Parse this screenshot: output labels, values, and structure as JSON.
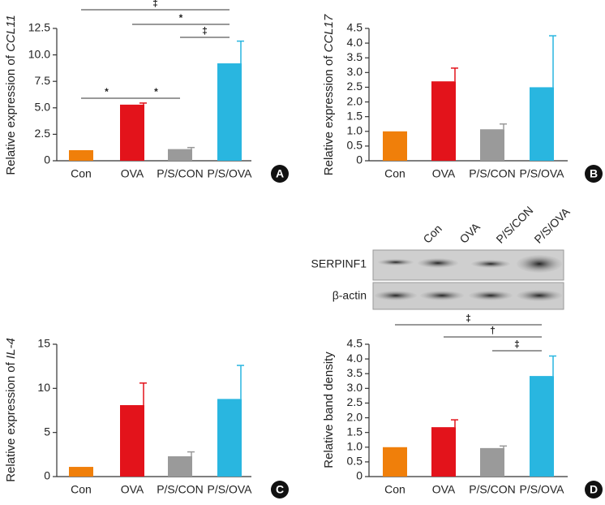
{
  "chart_data": [
    {
      "type": "bar",
      "label": "A",
      "ylabel": {
        "text": "Relative expression of ",
        "gene": "CCL11"
      },
      "categories": [
        "Con",
        "OVA",
        "P/S/CON",
        "P/S/OVA"
      ],
      "values": [
        1.0,
        5.3,
        1.1,
        9.2
      ],
      "errors": [
        0,
        0.15,
        0.15,
        2.1
      ],
      "colors": [
        "#f07f0a",
        "#e3131b",
        "#9a9a9a",
        "#29b6e0"
      ],
      "ylim": [
        0,
        12.5
      ],
      "yticks": [
        0,
        2.5,
        {
          "value": 5,
          "label": "5.0"
        },
        7.5,
        {
          "value": 10,
          "label": "10.0"
        },
        12.5
      ],
      "annotations": [
        {
          "groups": [
            "Con",
            "P/S/OVA"
          ],
          "text": "‡"
        },
        {
          "groups": [
            "OVA",
            "P/S/OVA"
          ],
          "text": "*"
        },
        {
          "groups": [
            "P/S/CON",
            "P/S/OVA"
          ],
          "text": "‡"
        },
        {
          "groups": [
            "Con",
            "OVA"
          ],
          "text": "*"
        },
        {
          "groups": [
            "OVA",
            "P/S/CON"
          ],
          "text": "*"
        }
      ]
    },
    {
      "type": "bar",
      "label": "B",
      "ylabel": {
        "text": "Relative expression of ",
        "gene": "CCL17"
      },
      "categories": [
        "Con",
        "OVA",
        "P/S/CON",
        "P/S/OVA"
      ],
      "values": [
        1.0,
        2.7,
        1.07,
        2.5
      ],
      "errors": [
        0,
        0.45,
        0.18,
        1.75
      ],
      "colors": [
        "#f07f0a",
        "#e3131b",
        "#9a9a9a",
        "#29b6e0"
      ],
      "ylim": [
        0,
        4.5
      ],
      "yticks": [
        0,
        0.5,
        {
          "value": 1,
          "label": "1.0"
        },
        1.5,
        {
          "value": 2,
          "label": "2.0"
        },
        2.5,
        {
          "value": 3,
          "label": "3.0"
        },
        3.5,
        {
          "value": 4,
          "label": "4.0"
        },
        4.5
      ],
      "annotations": []
    },
    {
      "type": "bar",
      "label": "C",
      "ylabel": {
        "text": "Relative expression of ",
        "gene": "IL-4"
      },
      "categories": [
        "Con",
        "OVA",
        "P/S/CON",
        "P/S/OVA"
      ],
      "values": [
        1.1,
        8.1,
        2.3,
        8.8
      ],
      "errors": [
        0,
        2.5,
        0.5,
        3.8
      ],
      "colors": [
        "#f07f0a",
        "#e3131b",
        "#9a9a9a",
        "#29b6e0"
      ],
      "ylim": [
        0,
        15
      ],
      "yticks": [
        0,
        5,
        10,
        15
      ],
      "annotations": []
    },
    {
      "type": "bar",
      "label": "D",
      "ylabel": {
        "text": "Relative band density",
        "gene": ""
      },
      "categories": [
        "Con",
        "OVA",
        "P/S/CON",
        "P/S/OVA"
      ],
      "values": [
        1.0,
        1.68,
        0.97,
        3.42
      ],
      "errors": [
        0,
        0.25,
        0.07,
        0.68
      ],
      "colors": [
        "#f07f0a",
        "#e3131b",
        "#9a9a9a",
        "#29b6e0"
      ],
      "ylim": [
        0,
        4.5
      ],
      "yticks": [
        0,
        0.5,
        {
          "value": 1,
          "label": "1.0"
        },
        1.5,
        {
          "value": 2,
          "label": "2.0"
        },
        2.5,
        {
          "value": 3,
          "label": "3.0"
        },
        3.5,
        {
          "value": 4,
          "label": "4.0"
        },
        4.5
      ],
      "annotations": [
        {
          "groups": [
            "Con",
            "P/S/OVA"
          ],
          "text": "‡"
        },
        {
          "groups": [
            "OVA",
            "P/S/OVA"
          ],
          "text": "†"
        },
        {
          "groups": [
            "P/S/CON",
            "P/S/OVA"
          ],
          "text": "‡"
        }
      ]
    }
  ],
  "blot": {
    "lanes": [
      "Con",
      "OVA",
      "P/S/CON",
      "P/S/OVA"
    ],
    "rows": [
      "SERPINF1",
      "β-actin"
    ]
  }
}
